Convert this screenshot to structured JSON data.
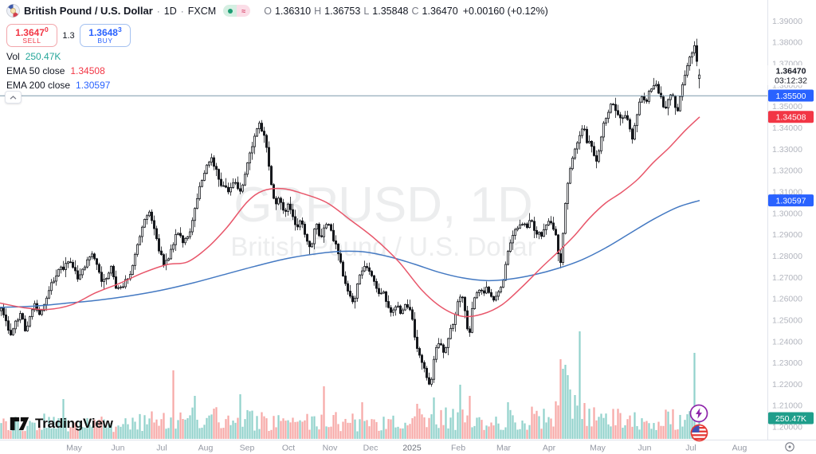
{
  "header": {
    "symbol": "British Pound / U.S. Dollar",
    "sep1": "·",
    "timeframe": "1D",
    "sep2": "·",
    "exchange": "FXCM",
    "ohlc": {
      "o_key": "O",
      "o_val": "1.36310",
      "h_key": "H",
      "h_val": "1.36753",
      "l_key": "L",
      "l_val": "1.35848",
      "c_key": "C",
      "c_val": "1.36470",
      "change": "+0.00160 (+0.12%)"
    }
  },
  "trade": {
    "sell_value": "1.3647",
    "sell_sup": "0",
    "sell_label": "SELL",
    "spread": "1.3",
    "buy_value": "1.3648",
    "buy_sup": "3",
    "buy_label": "BUY"
  },
  "indicators": [
    {
      "name": "Vol",
      "value": "250.47K",
      "color": "#26a69a"
    },
    {
      "name": "EMA 50 close",
      "value": "1.34508",
      "color": "#f23645"
    },
    {
      "name": "EMA 200 close",
      "value": "1.30597",
      "color": "#2962ff"
    }
  ],
  "watermark": {
    "line1": "GBPUSD, 1D",
    "line2": "British Pound / U.S. Dollar"
  },
  "branding": {
    "logo_text": "TradingView"
  },
  "price_axis": {
    "ticks": [
      "1.39000",
      "1.38000",
      "1.37000",
      "1.36000",
      "1.35000",
      "1.34000",
      "1.33000",
      "1.32000",
      "1.31000",
      "1.30000",
      "1.29000",
      "1.28000",
      "1.27000",
      "1.26000",
      "1.25000",
      "1.24000",
      "1.23000",
      "1.22000",
      "1.21000",
      "1.20000"
    ],
    "current": {
      "price": "1.36470",
      "countdown": "03:12:32"
    },
    "alert_line": {
      "value": 1.355,
      "label": "1.35500",
      "color": "#2962ff"
    },
    "ema50_label": {
      "value": 1.34508,
      "label": "1.34508",
      "color": "#f23645"
    },
    "ema200_label": {
      "value": 1.30597,
      "label": "1.30597",
      "color": "#2962ff"
    },
    "volume_label": {
      "label": "250.47K",
      "color": "#1f9e8b"
    }
  },
  "time_axis": {
    "labels": [
      [
        "May",
        93
      ],
      [
        "Jun",
        148
      ],
      [
        "Jul",
        203
      ],
      [
        "Aug",
        258
      ],
      [
        "Sep",
        310
      ],
      [
        "Oct",
        362
      ],
      [
        "Nov",
        414
      ],
      [
        "Dec",
        465
      ],
      [
        "2025",
        517
      ],
      [
        "Feb",
        575
      ],
      [
        "Mar",
        632
      ],
      [
        "Apr",
        689
      ],
      [
        "May",
        750
      ],
      [
        "Jun",
        809
      ],
      [
        "Jul",
        867
      ],
      [
        "Aug",
        928
      ]
    ]
  },
  "chart_data": {
    "type": "candlestick",
    "symbol": "GBPUSD",
    "interval": "1D",
    "title": "GBPUSD, 1D — British Pound / U.S. Dollar",
    "y_range": [
      1.2,
      1.39
    ],
    "grid": false,
    "last_candle": {
      "o": 1.3631,
      "h": 1.36753,
      "l": 1.35848,
      "c": 1.3647
    },
    "close_path": [
      [
        2,
        1.2545
      ],
      [
        8,
        1.248
      ],
      [
        14,
        1.2435
      ],
      [
        20,
        1.25
      ],
      [
        26,
        1.253
      ],
      [
        32,
        1.2455
      ],
      [
        38,
        1.252
      ],
      [
        44,
        1.258
      ],
      [
        50,
        1.253
      ],
      [
        56,
        1.257
      ],
      [
        62,
        1.264
      ],
      [
        68,
        1.27
      ],
      [
        74,
        1.273
      ],
      [
        80,
        1.275
      ],
      [
        86,
        1.2775
      ],
      [
        92,
        1.2735
      ],
      [
        98,
        1.27
      ],
      [
        104,
        1.274
      ],
      [
        110,
        1.2785
      ],
      [
        116,
        1.2825
      ],
      [
        120,
        1.277
      ],
      [
        124,
        1.272
      ],
      [
        128,
        1.2685
      ],
      [
        134,
        1.271
      ],
      [
        140,
        1.2745
      ],
      [
        146,
        1.2645
      ],
      [
        152,
        1.265
      ],
      [
        158,
        1.269
      ],
      [
        164,
        1.272
      ],
      [
        170,
        1.282
      ],
      [
        176,
        1.291
      ],
      [
        182,
        1.298
      ],
      [
        188,
        1.3
      ],
      [
        194,
        1.2915
      ],
      [
        200,
        1.282
      ],
      [
        206,
        1.276
      ],
      [
        212,
        1.279
      ],
      [
        218,
        1.287
      ],
      [
        224,
        1.292
      ],
      [
        230,
        1.287
      ],
      [
        236,
        1.289
      ],
      [
        242,
        1.2965
      ],
      [
        248,
        1.309
      ],
      [
        254,
        1.317
      ],
      [
        260,
        1.3225
      ],
      [
        266,
        1.326
      ],
      [
        270,
        1.3215
      ],
      [
        274,
        1.316
      ],
      [
        278,
        1.311
      ],
      [
        282,
        1.313
      ],
      [
        286,
        1.309
      ],
      [
        290,
        1.312
      ],
      [
        294,
        1.314
      ],
      [
        298,
        1.3125
      ],
      [
        302,
        1.31
      ],
      [
        306,
        1.317
      ],
      [
        310,
        1.322
      ],
      [
        314,
        1.329
      ],
      [
        318,
        1.3345
      ],
      [
        322,
        1.339
      ],
      [
        326,
        1.342
      ],
      [
        330,
        1.337
      ],
      [
        334,
        1.333
      ],
      [
        338,
        1.321
      ],
      [
        342,
        1.309
      ],
      [
        346,
        1.3045
      ],
      [
        350,
        1.307
      ],
      [
        354,
        1.304
      ],
      [
        358,
        1.299
      ],
      [
        362,
        1.304
      ],
      [
        366,
        1.2985
      ],
      [
        370,
        1.2955
      ],
      [
        374,
        1.293
      ],
      [
        378,
        1.2985
      ],
      [
        382,
        1.292
      ],
      [
        386,
        1.287
      ],
      [
        390,
        1.284
      ],
      [
        396,
        1.296
      ],
      [
        402,
        1.287
      ],
      [
        408,
        1.2965
      ],
      [
        414,
        1.2925
      ],
      [
        420,
        1.287
      ],
      [
        426,
        1.2795
      ],
      [
        432,
        1.2675
      ],
      [
        438,
        1.262
      ],
      [
        444,
        1.259
      ],
      [
        450,
        1.269
      ],
      [
        456,
        1.274
      ],
      [
        462,
        1.2755
      ],
      [
        468,
        1.269
      ],
      [
        474,
        1.2625
      ],
      [
        480,
        1.264
      ],
      [
        486,
        1.257
      ],
      [
        492,
        1.253
      ],
      [
        498,
        1.258
      ],
      [
        504,
        1.253
      ],
      [
        510,
        1.257
      ],
      [
        516,
        1.2525
      ],
      [
        522,
        1.239
      ],
      [
        528,
        1.232
      ],
      [
        534,
        1.225
      ],
      [
        540,
        1.218
      ],
      [
        546,
        1.235
      ],
      [
        552,
        1.241
      ],
      [
        558,
        1.234
      ],
      [
        564,
        1.245
      ],
      [
        570,
        1.249
      ],
      [
        576,
        1.263
      ],
      [
        582,
        1.259
      ],
      [
        588,
        1.24
      ],
      [
        594,
        1.261
      ],
      [
        600,
        1.264
      ],
      [
        606,
        1.2625
      ],
      [
        612,
        1.266
      ],
      [
        618,
        1.2585
      ],
      [
        624,
        1.263
      ],
      [
        630,
        1.266
      ],
      [
        636,
        1.279
      ],
      [
        642,
        1.289
      ],
      [
        648,
        1.2925
      ],
      [
        654,
        1.296
      ],
      [
        660,
        1.293
      ],
      [
        666,
        1.297
      ],
      [
        672,
        1.292
      ],
      [
        678,
        1.2895
      ],
      [
        684,
        1.293
      ],
      [
        690,
        1.296
      ],
      [
        696,
        1.293
      ],
      [
        700,
        1.283
      ],
      [
        704,
        1.277
      ],
      [
        708,
        1.3
      ],
      [
        712,
        1.313
      ],
      [
        716,
        1.323
      ],
      [
        720,
        1.328
      ],
      [
        724,
        1.332
      ],
      [
        728,
        1.3365
      ],
      [
        732,
        1.341
      ],
      [
        736,
        1.334
      ],
      [
        740,
        1.333
      ],
      [
        744,
        1.329
      ],
      [
        748,
        1.3245
      ],
      [
        752,
        1.33
      ],
      [
        756,
        1.3405
      ],
      [
        762,
        1.347
      ],
      [
        768,
        1.351
      ],
      [
        774,
        1.347
      ],
      [
        780,
        1.343
      ],
      [
        786,
        1.347
      ],
      [
        790,
        1.34
      ],
      [
        794,
        1.335
      ],
      [
        798,
        1.344
      ],
      [
        802,
        1.351
      ],
      [
        806,
        1.3555
      ],
      [
        810,
        1.3525
      ],
      [
        814,
        1.3555
      ],
      [
        818,
        1.358
      ],
      [
        822,
        1.3605
      ],
      [
        826,
        1.357
      ],
      [
        830,
        1.353
      ],
      [
        834,
        1.349
      ],
      [
        838,
        1.353
      ],
      [
        842,
        1.357
      ],
      [
        846,
        1.353
      ],
      [
        850,
        1.347
      ],
      [
        854,
        1.355
      ],
      [
        858,
        1.363
      ],
      [
        862,
        1.369
      ],
      [
        866,
        1.373
      ],
      [
        869,
        1.3755
      ],
      [
        872,
        1.379
      ],
      [
        875,
        1.3695
      ],
      [
        878,
        1.3647
      ]
    ],
    "ema50_points": [
      [
        0,
        1.258
      ],
      [
        30,
        1.2558
      ],
      [
        60,
        1.255
      ],
      [
        90,
        1.2572
      ],
      [
        120,
        1.2628
      ],
      [
        150,
        1.2672
      ],
      [
        180,
        1.2722
      ],
      [
        210,
        1.276
      ],
      [
        235,
        1.2772
      ],
      [
        260,
        1.2838
      ],
      [
        285,
        1.2935
      ],
      [
        310,
        1.3052
      ],
      [
        330,
        1.3105
      ],
      [
        355,
        1.3115
      ],
      [
        380,
        1.3092
      ],
      [
        410,
        1.305
      ],
      [
        440,
        1.2968
      ],
      [
        470,
        1.2882
      ],
      [
        500,
        1.2775
      ],
      [
        530,
        1.2638
      ],
      [
        555,
        1.2558
      ],
      [
        580,
        1.2518
      ],
      [
        605,
        1.2528
      ],
      [
        630,
        1.2572
      ],
      [
        655,
        1.2655
      ],
      [
        680,
        1.2748
      ],
      [
        700,
        1.2818
      ],
      [
        720,
        1.2892
      ],
      [
        740,
        1.2978
      ],
      [
        760,
        1.3048
      ],
      [
        780,
        1.3098
      ],
      [
        800,
        1.3158
      ],
      [
        820,
        1.3238
      ],
      [
        840,
        1.3308
      ],
      [
        860,
        1.3388
      ],
      [
        878,
        1.3451
      ]
    ],
    "ema200_points": [
      [
        0,
        1.256
      ],
      [
        40,
        1.2565
      ],
      [
        80,
        1.2578
      ],
      [
        120,
        1.2592
      ],
      [
        160,
        1.2612
      ],
      [
        200,
        1.2638
      ],
      [
        240,
        1.2672
      ],
      [
        280,
        1.2712
      ],
      [
        320,
        1.2752
      ],
      [
        360,
        1.2788
      ],
      [
        400,
        1.2812
      ],
      [
        430,
        1.2822
      ],
      [
        460,
        1.2818
      ],
      [
        490,
        1.2795
      ],
      [
        520,
        1.2762
      ],
      [
        550,
        1.2725
      ],
      [
        580,
        1.2698
      ],
      [
        610,
        1.2685
      ],
      [
        640,
        1.2692
      ],
      [
        670,
        1.2712
      ],
      [
        700,
        1.2742
      ],
      [
        730,
        1.2782
      ],
      [
        760,
        1.2838
      ],
      [
        790,
        1.2905
      ],
      [
        820,
        1.2972
      ],
      [
        850,
        1.3028
      ],
      [
        878,
        1.306
      ]
    ],
    "volume_base": [
      [
        0,
        18
      ],
      [
        60,
        22
      ],
      [
        120,
        17
      ],
      [
        180,
        22
      ],
      [
        240,
        26
      ],
      [
        300,
        24
      ],
      [
        360,
        18
      ],
      [
        420,
        22
      ],
      [
        480,
        19
      ],
      [
        540,
        26
      ],
      [
        600,
        22
      ],
      [
        660,
        24
      ],
      [
        695,
        30
      ],
      [
        740,
        26
      ],
      [
        800,
        22
      ],
      [
        850,
        24
      ],
      [
        878,
        22
      ]
    ],
    "volume_spikes": [
      [
        80,
        50,
        "up"
      ],
      [
        218,
        86,
        "down"
      ],
      [
        244,
        54,
        "up"
      ],
      [
        300,
        56,
        "up"
      ],
      [
        406,
        66,
        "down"
      ],
      [
        455,
        46,
        "down"
      ],
      [
        522,
        44,
        "down"
      ],
      [
        545,
        52,
        "up"
      ],
      [
        576,
        68,
        "up"
      ],
      [
        588,
        54,
        "down"
      ],
      [
        637,
        46,
        "up"
      ],
      [
        702,
        100,
        "down"
      ],
      [
        705,
        88,
        "up"
      ],
      [
        708,
        93,
        "up"
      ],
      [
        711,
        80,
        "up"
      ],
      [
        714,
        62,
        "up"
      ],
      [
        721,
        55,
        "up"
      ],
      [
        727,
        135,
        "up"
      ],
      [
        733,
        45,
        "down"
      ],
      [
        871,
        108,
        "up"
      ],
      [
        878,
        26,
        "up"
      ]
    ],
    "colors": {
      "up_body": "#ffffff",
      "down_body": "#16181d",
      "border": "#16181d",
      "ema50": "#e8566a",
      "ema200": "#4479c2",
      "vol_up": "#26a69a",
      "vol_down": "#ef5350",
      "price_line": "#7c98ab"
    }
  }
}
